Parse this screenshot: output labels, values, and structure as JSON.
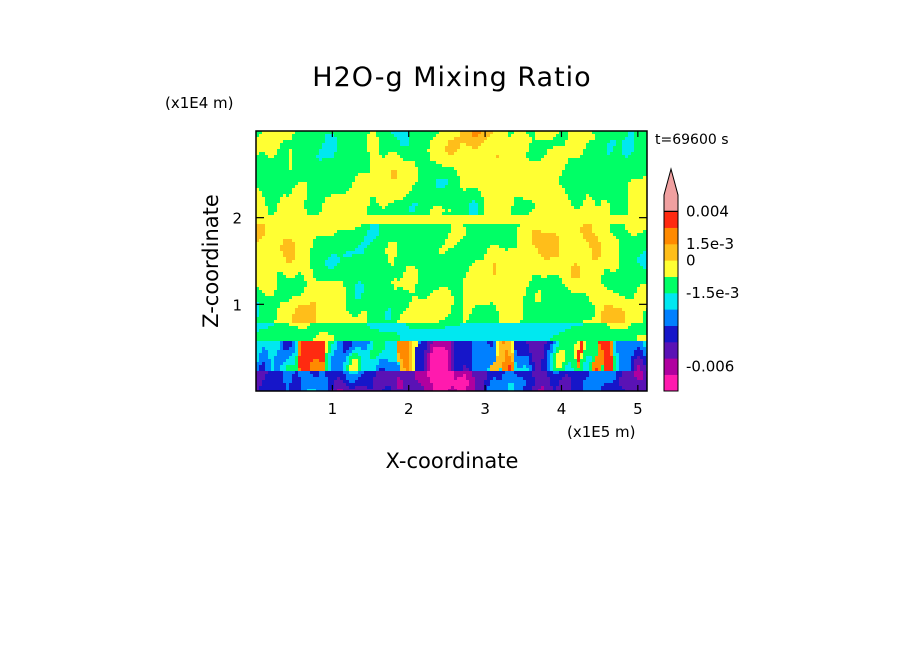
{
  "chart_data": {
    "type": "heatmap",
    "title": "H2O-g Mixing Ratio",
    "xlabel": "X-coordinate",
    "ylabel": "Z-coordinate",
    "x_scale_label": "(x1E5 m)",
    "y_scale_label": "(x1E4 m)",
    "time_label": "t=69600 s",
    "x_ticks": [
      1,
      2,
      3,
      4,
      5
    ],
    "y_ticks": [
      1,
      2
    ],
    "xlim": [
      0,
      5.12
    ],
    "ylim": [
      0,
      3.0
    ],
    "grid": false,
    "legend": "colorbar-right",
    "colorbar": {
      "levels": [
        {
          "color": "#ff1aae"
        },
        {
          "color": "#b0009f"
        },
        {
          "color": "#5a12b5"
        },
        {
          "color": "#1616c9"
        },
        {
          "color": "#0080ff"
        },
        {
          "color": "#00e8f0"
        },
        {
          "color": "#00ff66"
        },
        {
          "color": "#ffff33"
        },
        {
          "color": "#ffbe1a"
        },
        {
          "color": "#ff8a00"
        },
        {
          "color": "#ff2a10"
        },
        {
          "color": "#f0a0a0"
        }
      ],
      "extend_top": true,
      "labels": [
        {
          "text": "0.004",
          "level": 11
        },
        {
          "text": "1.5e-3",
          "level": 9
        },
        {
          "text": "0",
          "level": 8
        },
        {
          "text": "-1.5e-3",
          "level": 6
        },
        {
          "text": "-0.006",
          "level": 1.5
        }
      ]
    }
  }
}
